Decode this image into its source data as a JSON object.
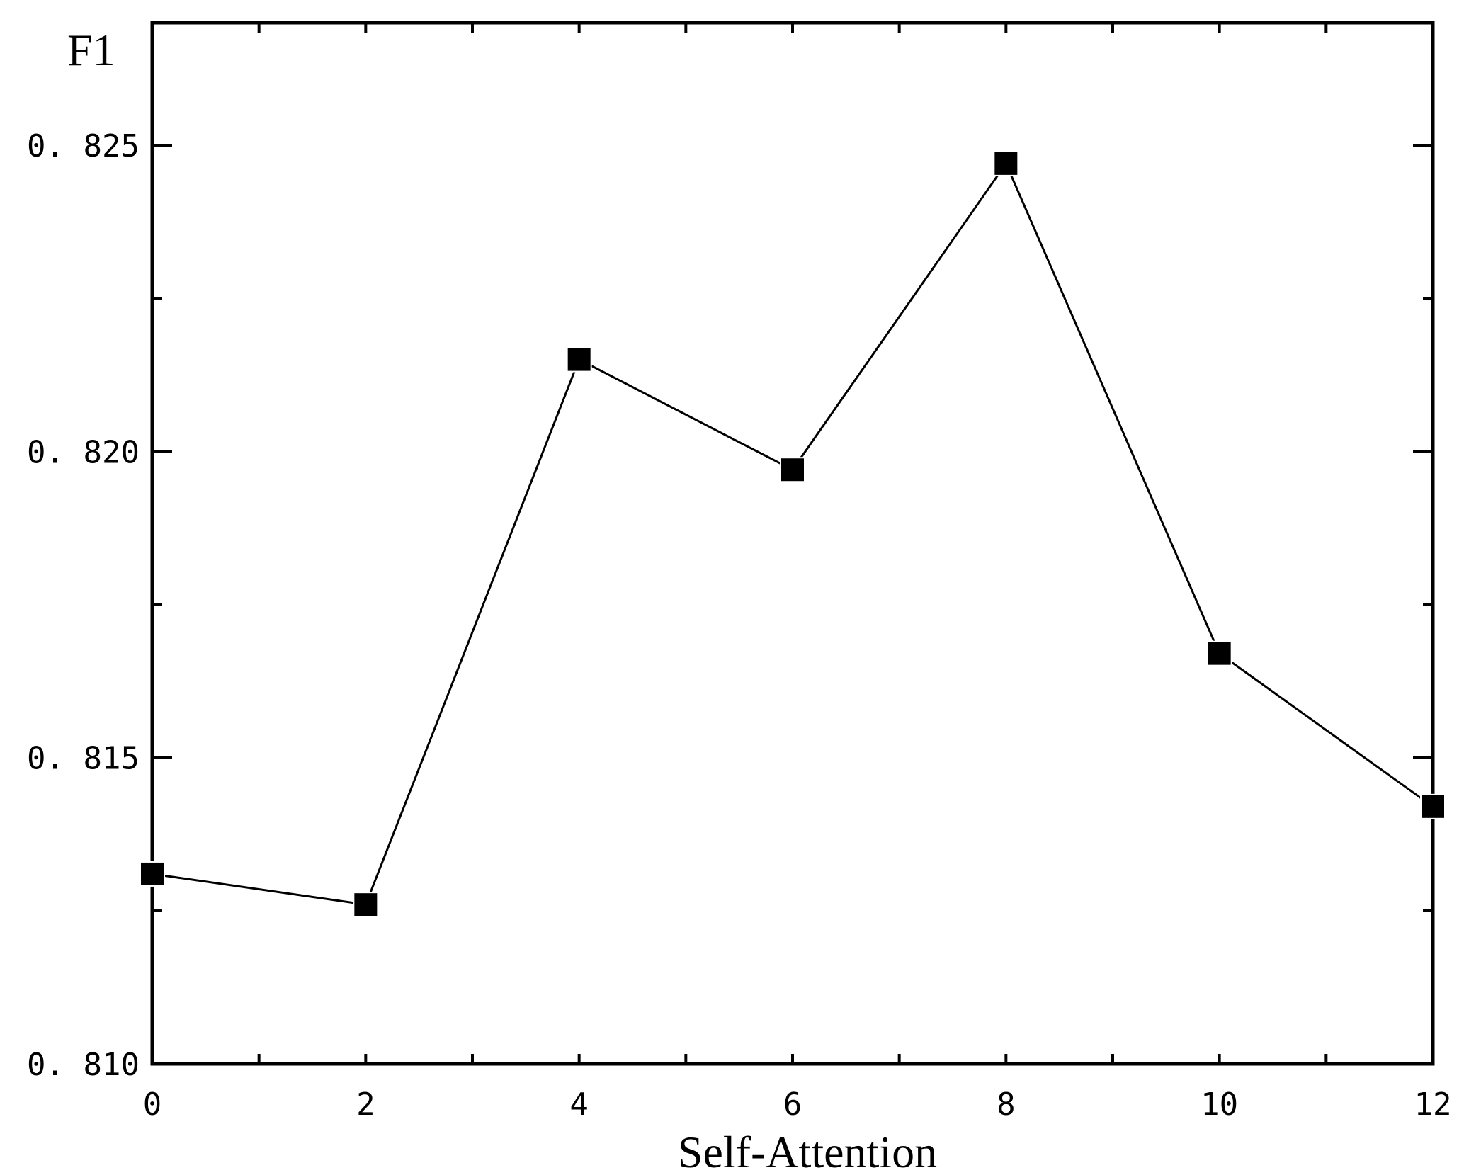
{
  "chart_data": {
    "type": "line",
    "title": "",
    "xlabel": "Self-Attention",
    "ylabel": "F1",
    "xlim": [
      0,
      12
    ],
    "ylim": [
      0.81,
      0.827
    ],
    "x_ticks": [
      0,
      2,
      4,
      6,
      8,
      10,
      12
    ],
    "x_tick_labels": [
      "0",
      "2",
      "4",
      "6",
      "8",
      "10",
      "12"
    ],
    "y_ticks": [
      0.81,
      0.815,
      0.82,
      0.825
    ],
    "y_tick_labels": [
      "0. 810",
      "0. 815",
      "0. 820",
      "0. 825"
    ],
    "x_minor_step": 1,
    "y_minor_step": 0.0025,
    "grid": false,
    "legend": "none",
    "series": [
      {
        "marker": "square",
        "color": "#000000",
        "x": [
          0,
          2,
          4,
          6,
          8,
          10,
          12
        ],
        "y": [
          0.8131,
          0.8126,
          0.8215,
          0.8197,
          0.8247,
          0.8167,
          0.8142
        ]
      }
    ]
  }
}
